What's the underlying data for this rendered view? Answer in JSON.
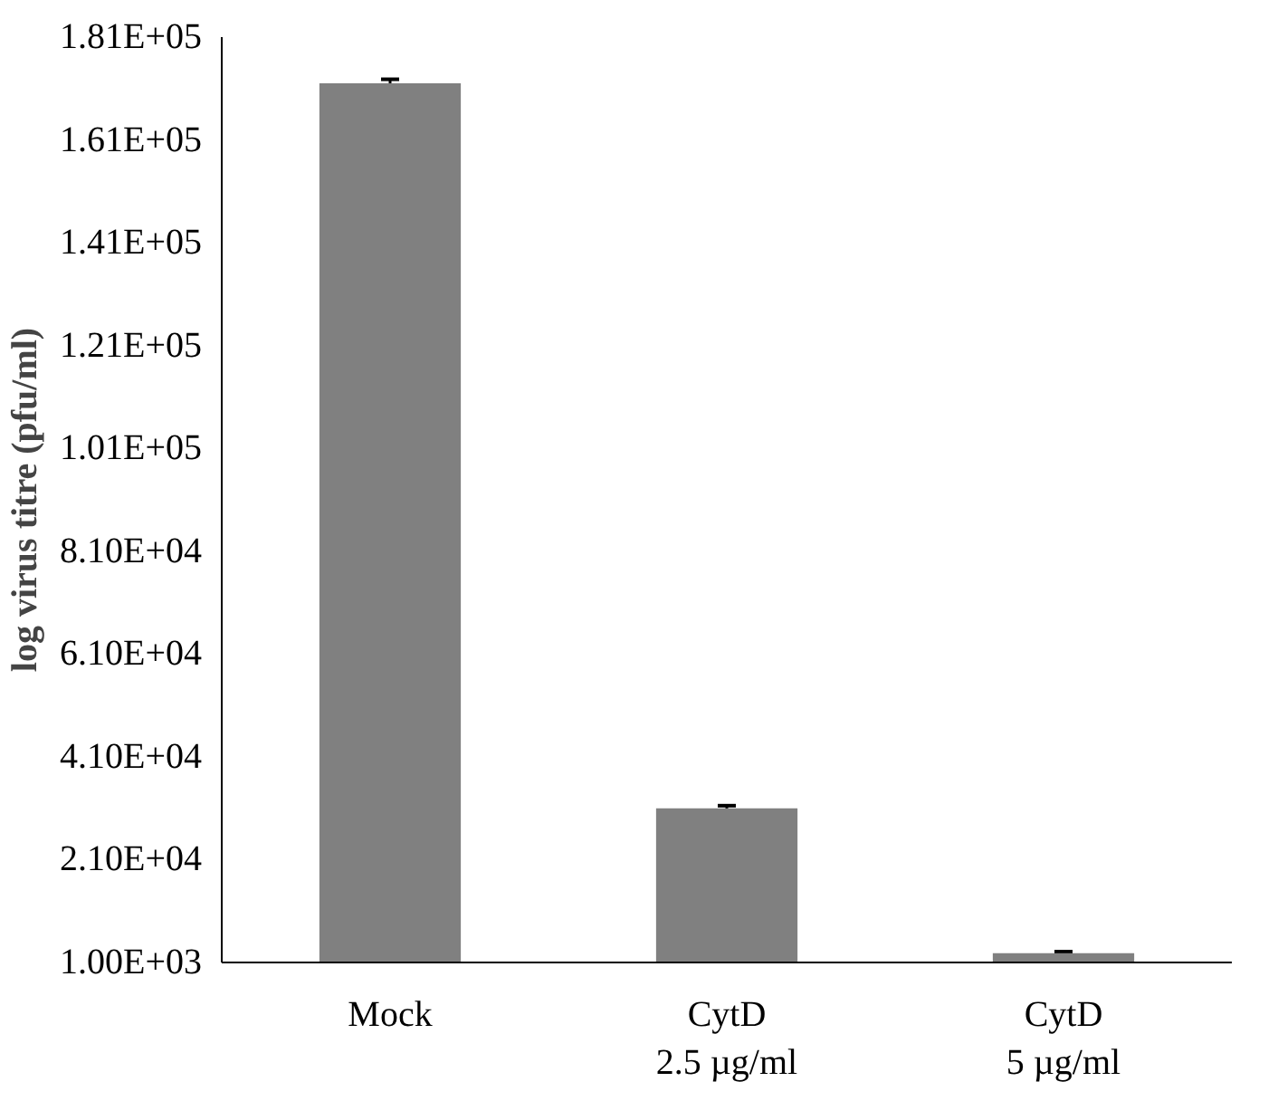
{
  "chart_data": {
    "type": "bar",
    "ylabel": "log virus titre (pfu/ml)",
    "categories": [
      "Mock",
      "CytD\n2.5 µg/ml",
      "CytD\n5 µg/ml"
    ],
    "values": [
      172000,
      31000,
      2800
    ],
    "errors": [
      800,
      500,
      300
    ],
    "color": "#808080",
    "ylim": [
      1000,
      181000
    ],
    "yticks": [
      {
        "value": 1000,
        "label": "1.00E+03"
      },
      {
        "value": 21000,
        "label": "2.10E+04"
      },
      {
        "value": 41000,
        "label": "4.10E+04"
      },
      {
        "value": 61000,
        "label": "6.10E+04"
      },
      {
        "value": 81000,
        "label": "8.10E+04"
      },
      {
        "value": 101000,
        "label": "1.01E+05"
      },
      {
        "value": 121000,
        "label": "1.21E+05"
      },
      {
        "value": 141000,
        "label": "1.41E+05"
      },
      {
        "value": 161000,
        "label": "1.61E+05"
      },
      {
        "value": 181000,
        "label": "1.81E+05"
      }
    ],
    "grid": false
  }
}
